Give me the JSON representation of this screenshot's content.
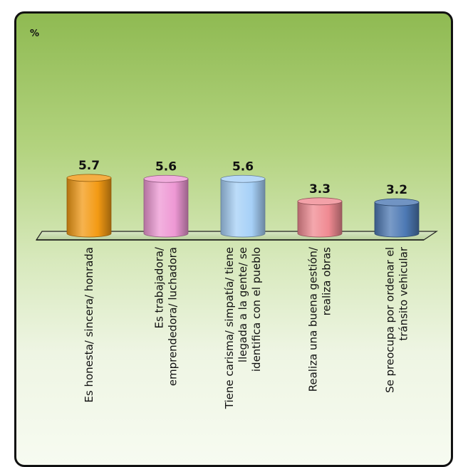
{
  "chart_data": {
    "type": "bar",
    "unit_label": "%",
    "categories": [
      [
        "Es honesta/ sincera/ honrada"
      ],
      [
        "Es trabajadora/",
        "emprendedora/ luchadora"
      ],
      [
        "Tiene carisma/ simpatía/ tiene",
        "llegada a la gente/ se",
        "identifica con el pueblo"
      ],
      [
        "Realiza una buena gestión/",
        "realiza obras"
      ],
      [
        "Se preocupa por ordenar el",
        "tránsito vehicular"
      ]
    ],
    "values": [
      5.7,
      5.6,
      5.6,
      3.3,
      3.2
    ],
    "value_labels": [
      "5.7",
      "5.6",
      "5.6",
      "3.3",
      "3.2"
    ],
    "colors": [
      "#f39a14",
      "#ee98d4",
      "#a6d0f7",
      "#f08a92",
      "#4d79b4"
    ],
    "ylim": [
      0,
      6
    ],
    "legend": "none",
    "grid": false
  }
}
